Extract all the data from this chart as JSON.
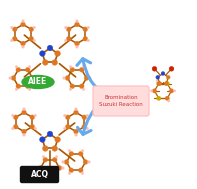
{
  "bg_color": "#ffffff",
  "arrow_color": "#66aaee",
  "label_aiee_text": "AIEE",
  "label_aiee_bg": "#33aa33",
  "label_aiee_fg": "#ffffff",
  "label_acq_text": "ACQ",
  "label_acq_bg": "#111111",
  "label_acq_fg": "#ffffff",
  "reaction_box_text": "Bromination\nSuzuki Reaction",
  "reaction_box_bg": "#ffdddd",
  "reaction_box_fg": "#cc3333",
  "reaction_box_edge": "#ffbbbb",
  "mol_orange": "#dd7722",
  "mol_red": "#cc2200",
  "mol_blue": "#2244cc",
  "mol_yellow": "#ccaa00",
  "mol_pink": "#ffbbaa",
  "bond_color": "#aa5500",
  "bond_lw": 1.0
}
